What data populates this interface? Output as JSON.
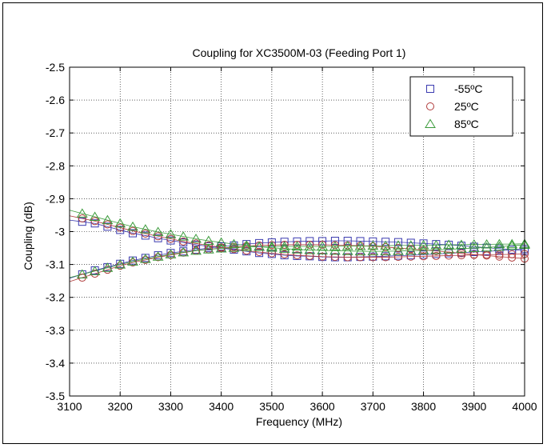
{
  "chart_data": {
    "type": "scatter",
    "title": "Coupling for XC3500M-03 (Feeding Port 1)",
    "xlabel": "Frequency (MHz)",
    "ylabel": "Coupling (dB)",
    "xlim": [
      3100,
      4000
    ],
    "ylim": [
      -3.5,
      -2.5
    ],
    "xticks": [
      3100,
      3200,
      3300,
      3400,
      3500,
      3600,
      3700,
      3800,
      3900,
      4000
    ],
    "yticks": [
      -2.5,
      -2.6,
      -2.7,
      -2.8,
      -2.9,
      -3,
      -3.1,
      -3.2,
      -3.3,
      -3.4,
      -3.5
    ],
    "grid": true,
    "legend_position": "top-right",
    "x": [
      3125,
      3150,
      3175,
      3200,
      3225,
      3250,
      3275,
      3300,
      3325,
      3350,
      3375,
      3400,
      3425,
      3450,
      3475,
      3500,
      3525,
      3550,
      3575,
      3600,
      3625,
      3650,
      3675,
      3700,
      3725,
      3750,
      3775,
      3800,
      3825,
      3850,
      3875,
      3900,
      3925,
      3950,
      3975,
      4000
    ],
    "series": [
      {
        "name": "-55ºC",
        "marker": "square",
        "color": "#3b3bb0",
        "traces": [
          [
            -2.97,
            -2.975,
            -2.985,
            -2.995,
            -3.005,
            -3.012,
            -3.02,
            -3.027,
            -3.033,
            -3.04,
            -3.045,
            -3.05,
            -3.055,
            -3.06,
            -3.065,
            -3.068,
            -3.072,
            -3.074,
            -3.075,
            -3.077,
            -3.078,
            -3.078,
            -3.077,
            -3.076,
            -3.075,
            -3.073,
            -3.072,
            -3.07,
            -3.068,
            -3.066,
            -3.064,
            -3.062,
            -3.06,
            -3.058,
            -3.055,
            -3.053
          ],
          [
            -3.13,
            -3.118,
            -3.108,
            -3.098,
            -3.088,
            -3.08,
            -3.072,
            -3.065,
            -3.06,
            -3.055,
            -3.05,
            -3.045,
            -3.042,
            -3.038,
            -3.035,
            -3.033,
            -3.031,
            -3.03,
            -3.029,
            -3.029,
            -3.028,
            -3.028,
            -3.029,
            -3.03,
            -3.031,
            -3.032,
            -3.034,
            -3.036,
            -3.038,
            -3.04,
            -3.043,
            -3.046,
            -3.049,
            -3.052,
            -3.055,
            -3.058
          ]
        ]
      },
      {
        "name": "25ºC",
        "marker": "circle",
        "color": "#b03b3b",
        "traces": [
          [
            -2.96,
            -2.968,
            -2.978,
            -2.988,
            -2.998,
            -3.006,
            -3.014,
            -3.022,
            -3.03,
            -3.036,
            -3.042,
            -3.048,
            -3.053,
            -3.058,
            -3.062,
            -3.066,
            -3.069,
            -3.072,
            -3.074,
            -3.076,
            -3.077,
            -3.078,
            -3.078,
            -3.078,
            -3.078,
            -3.077,
            -3.076,
            -3.075,
            -3.074,
            -3.073,
            -3.072,
            -3.071,
            -3.07,
            -3.07,
            -3.069,
            -3.068
          ],
          [
            -3.14,
            -3.128,
            -3.116,
            -3.104,
            -3.094,
            -3.086,
            -3.078,
            -3.071,
            -3.064,
            -3.058,
            -3.054,
            -3.05,
            -3.047,
            -3.044,
            -3.042,
            -3.041,
            -3.04,
            -3.04,
            -3.04,
            -3.04,
            -3.041,
            -3.042,
            -3.043,
            -3.045,
            -3.047,
            -3.05,
            -3.053,
            -3.056,
            -3.059,
            -3.062,
            -3.066,
            -3.07,
            -3.073,
            -3.076,
            -3.079,
            -3.082
          ]
        ]
      },
      {
        "name": "85ºC",
        "marker": "triangle",
        "color": "#3b9b3b",
        "traces": [
          [
            -2.945,
            -2.955,
            -2.965,
            -2.975,
            -2.985,
            -2.993,
            -3.001,
            -3.008,
            -3.015,
            -3.022,
            -3.028,
            -3.033,
            -3.038,
            -3.042,
            -3.046,
            -3.049,
            -3.052,
            -3.054,
            -3.056,
            -3.057,
            -3.058,
            -3.059,
            -3.06,
            -3.06,
            -3.06,
            -3.059,
            -3.058,
            -3.057,
            -3.056,
            -3.054,
            -3.052,
            -3.05,
            -3.048,
            -3.046,
            -3.043,
            -3.04
          ],
          [
            -3.13,
            -3.12,
            -3.11,
            -3.1,
            -3.091,
            -3.083,
            -3.076,
            -3.069,
            -3.063,
            -3.058,
            -3.054,
            -3.051,
            -3.049,
            -3.047,
            -3.046,
            -3.045,
            -3.045,
            -3.045,
            -3.045,
            -3.045,
            -3.045,
            -3.044,
            -3.044,
            -3.043,
            -3.043,
            -3.042,
            -3.042,
            -3.041,
            -3.041,
            -3.04,
            -3.04,
            -3.039,
            -3.039,
            -3.038,
            -3.038,
            -3.037
          ]
        ]
      }
    ]
  }
}
